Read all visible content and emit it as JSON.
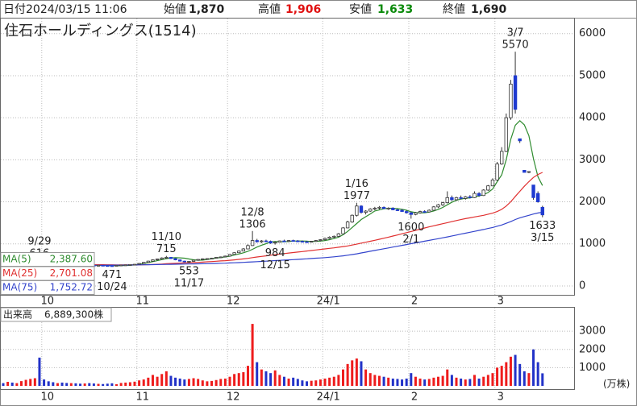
{
  "header": {
    "date_label": "日付",
    "datetime": "2024/03/15 11:06",
    "open_label": "始値",
    "open": "1,870",
    "high_label": "高値",
    "high": "1,906",
    "low_label": "安値",
    "low": "1,633",
    "close_label": "終値",
    "close": "1,690"
  },
  "chart_data": {
    "type": "candlestick",
    "title": "住石ホールディングス(1514)",
    "categories": [
      null,
      null,
      null,
      null,
      null,
      null,
      null,
      null,
      null,
      "10",
      null,
      null,
      null,
      null,
      null,
      null,
      null,
      null,
      null,
      null,
      null,
      null,
      null,
      null,
      null,
      null,
      null,
      null,
      null,
      null,
      "11",
      null,
      null,
      null,
      null,
      null,
      null,
      null,
      null,
      null,
      null,
      null,
      null,
      null,
      null,
      null,
      null,
      null,
      null,
      null,
      "12",
      null,
      null,
      null,
      null,
      null,
      null,
      null,
      null,
      null,
      null,
      null,
      null,
      null,
      null,
      null,
      null,
      null,
      null,
      null,
      null,
      "24/1",
      null,
      null,
      null,
      null,
      null,
      null,
      null,
      null,
      null,
      null,
      null,
      null,
      null,
      null,
      null,
      null,
      null,
      null,
      "2",
      null,
      null,
      null,
      null,
      null,
      null,
      null,
      null,
      null,
      null,
      null,
      null,
      null,
      null,
      null,
      null,
      null,
      null,
      "3",
      null,
      null,
      null,
      null,
      null,
      null,
      null,
      null,
      null,
      null
    ],
    "ohlc": [
      [
        520,
        530,
        505,
        510
      ],
      [
        510,
        525,
        500,
        515
      ],
      [
        515,
        520,
        495,
        500
      ],
      [
        500,
        515,
        490,
        505
      ],
      [
        505,
        520,
        500,
        515
      ],
      [
        515,
        540,
        510,
        535
      ],
      [
        535,
        560,
        525,
        550
      ],
      [
        550,
        590,
        540,
        560
      ],
      [
        560,
        616,
        545,
        555
      ],
      [
        550,
        560,
        520,
        525
      ],
      [
        525,
        535,
        505,
        510
      ],
      [
        510,
        520,
        495,
        500
      ],
      [
        500,
        512,
        490,
        505
      ],
      [
        505,
        515,
        495,
        500
      ],
      [
        500,
        510,
        492,
        498
      ],
      [
        498,
        508,
        490,
        503
      ],
      [
        503,
        512,
        495,
        500
      ],
      [
        500,
        506,
        488,
        492
      ],
      [
        492,
        500,
        485,
        496
      ],
      [
        496,
        505,
        488,
        490
      ],
      [
        490,
        498,
        482,
        487
      ],
      [
        487,
        495,
        478,
        490
      ],
      [
        490,
        494,
        480,
        483
      ],
      [
        483,
        490,
        475,
        480
      ],
      [
        480,
        486,
        471,
        478
      ],
      [
        478,
        492,
        475,
        488
      ],
      [
        488,
        500,
        484,
        496
      ],
      [
        496,
        505,
        490,
        500
      ],
      [
        500,
        512,
        495,
        508
      ],
      [
        508,
        520,
        502,
        515
      ],
      [
        515,
        540,
        510,
        535
      ],
      [
        535,
        570,
        530,
        560
      ],
      [
        560,
        600,
        555,
        590
      ],
      [
        590,
        630,
        580,
        620
      ],
      [
        620,
        650,
        605,
        640
      ],
      [
        640,
        680,
        630,
        665
      ],
      [
        665,
        715,
        650,
        680
      ],
      [
        680,
        690,
        640,
        650
      ],
      [
        650,
        660,
        610,
        620
      ],
      [
        620,
        630,
        580,
        590
      ],
      [
        590,
        600,
        560,
        575
      ],
      [
        575,
        590,
        553,
        585
      ],
      [
        585,
        620,
        580,
        610
      ],
      [
        610,
        640,
        600,
        630
      ],
      [
        630,
        655,
        620,
        645
      ],
      [
        645,
        660,
        630,
        650
      ],
      [
        650,
        670,
        640,
        660
      ],
      [
        660,
        690,
        650,
        680
      ],
      [
        680,
        700,
        665,
        690
      ],
      [
        690,
        720,
        680,
        710
      ],
      [
        710,
        760,
        700,
        750
      ],
      [
        750,
        800,
        740,
        790
      ],
      [
        790,
        840,
        780,
        830
      ],
      [
        830,
        900,
        820,
        880
      ],
      [
        880,
        990,
        870,
        960
      ],
      [
        960,
        1306,
        950,
        1080
      ],
      [
        1080,
        1120,
        1030,
        1050
      ],
      [
        1050,
        1090,
        1020,
        1070
      ],
      [
        1070,
        1100,
        1040,
        1060
      ],
      [
        1060,
        1080,
        1000,
        1020
      ],
      [
        1020,
        1060,
        984,
        1040
      ],
      [
        1040,
        1080,
        1030,
        1070
      ],
      [
        1070,
        1100,
        1050,
        1060
      ],
      [
        1060,
        1090,
        1040,
        1080
      ],
      [
        1080,
        1100,
        1060,
        1070
      ],
      [
        1070,
        1090,
        1050,
        1060
      ],
      [
        1060,
        1080,
        1040,
        1050
      ],
      [
        1050,
        1070,
        1030,
        1040
      ],
      [
        1040,
        1070,
        1030,
        1060
      ],
      [
        1060,
        1090,
        1050,
        1080
      ],
      [
        1080,
        1110,
        1060,
        1100
      ],
      [
        1100,
        1150,
        1080,
        1130
      ],
      [
        1130,
        1180,
        1110,
        1160
      ],
      [
        1160,
        1200,
        1140,
        1180
      ],
      [
        1180,
        1260,
        1170,
        1240
      ],
      [
        1240,
        1400,
        1230,
        1380
      ],
      [
        1380,
        1550,
        1370,
        1520
      ],
      [
        1520,
        1700,
        1500,
        1680
      ],
      [
        1680,
        1977,
        1650,
        1900
      ],
      [
        1900,
        1920,
        1720,
        1750
      ],
      [
        1750,
        1800,
        1700,
        1780
      ],
      [
        1780,
        1850,
        1760,
        1830
      ],
      [
        1830,
        1880,
        1800,
        1850
      ],
      [
        1850,
        1900,
        1820,
        1870
      ],
      [
        1870,
        1890,
        1830,
        1840
      ],
      [
        1840,
        1870,
        1810,
        1850
      ],
      [
        1850,
        1870,
        1800,
        1810
      ],
      [
        1810,
        1840,
        1780,
        1800
      ],
      [
        1800,
        1830,
        1760,
        1770
      ],
      [
        1770,
        1800,
        1720,
        1740
      ],
      [
        1740,
        1760,
        1600,
        1700
      ],
      [
        1700,
        1760,
        1680,
        1740
      ],
      [
        1740,
        1790,
        1720,
        1770
      ],
      [
        1770,
        1800,
        1740,
        1760
      ],
      [
        1760,
        1820,
        1750,
        1800
      ],
      [
        1800,
        1900,
        1790,
        1880
      ],
      [
        1880,
        1950,
        1850,
        1930
      ],
      [
        1930,
        2000,
        1900,
        1980
      ],
      [
        1980,
        2250,
        1960,
        2100
      ],
      [
        2100,
        2150,
        2020,
        2050
      ],
      [
        2050,
        2120,
        2030,
        2100
      ],
      [
        2100,
        2150,
        2060,
        2080
      ],
      [
        2080,
        2140,
        2050,
        2120
      ],
      [
        2120,
        2160,
        2080,
        2100
      ],
      [
        2100,
        2250,
        2090,
        2200
      ],
      [
        2200,
        2230,
        2120,
        2150
      ],
      [
        2150,
        2300,
        2140,
        2280
      ],
      [
        2280,
        2400,
        2260,
        2380
      ],
      [
        2380,
        2560,
        2370,
        2520
      ],
      [
        2520,
        2950,
        2500,
        2900
      ],
      [
        2900,
        3300,
        2880,
        3200
      ],
      [
        3200,
        4100,
        3180,
        4000
      ],
      [
        4000,
        4900,
        3950,
        4800
      ],
      [
        5000,
        5570,
        4100,
        4200
      ],
      [
        3500,
        3500,
        3400,
        3450
      ],
      [
        2750,
        2750,
        2700,
        2700
      ],
      [
        2700,
        2730,
        2680,
        2720
      ],
      [
        2400,
        2400,
        2050,
        2100
      ],
      [
        2200,
        2250,
        1980,
        2000
      ],
      [
        1870,
        1906,
        1633,
        1690
      ]
    ],
    "up_color": "#ffffff",
    "down_color": "#1f3ad0",
    "candle_stroke": "#333333",
    "ylim": [
      -250,
      6340
    ],
    "yticks": [
      0,
      1000,
      2000,
      3000,
      4000,
      5000,
      6000
    ],
    "grid": true,
    "series": [
      {
        "name": "MA(5)",
        "legend_label": "2,387.60",
        "color": "#2e8b2e",
        "values": [
          515,
          515,
          512,
          508,
          509,
          510,
          521,
          533,
          545,
          545,
          538,
          522,
          510,
          503,
          500,
          501,
          501,
          499,
          496,
          496,
          494,
          493,
          490,
          486,
          484,
          482,
          483,
          487,
          492,
          501,
          514,
          532,
          554,
          578,
          601,
          625,
          649,
          665,
          671,
          668,
          660,
          641,
          622,
          612,
          614,
          629,
          645,
          661,
          675,
          690,
          708,
          734,
          760,
          789,
          822,
          871,
          925,
          969,
          1005,
          1046,
          1056,
          1050,
          1048,
          1056,
          1066,
          1069,
          1068,
          1064,
          1058,
          1058,
          1066,
          1080,
          1100,
          1128,
          1160,
          1218,
          1296,
          1390,
          1484,
          1580,
          1646,
          1712,
          1782,
          1808,
          1834,
          1846,
          1848,
          1838,
          1822,
          1800,
          1764,
          1744,
          1737,
          1740,
          1755,
          1782,
          1820,
          1866,
          1930,
          1990,
          2036,
          2066,
          2086,
          2094,
          2118,
          2140,
          2170,
          2222,
          2306,
          2480,
          2640,
          3000,
          3484,
          3820,
          3930,
          3830,
          3574,
          3034,
          2594,
          2387.6
        ]
      },
      {
        "name": "MA(25)",
        "legend_label": "2,701.08",
        "color": "#e03030",
        "values": [
          540,
          538,
          536,
          534,
          532,
          530,
          529,
          528,
          528,
          527,
          526,
          524,
          522,
          520,
          518,
          516,
          514,
          512,
          510,
          508,
          506,
          505,
          504,
          503,
          502,
          501,
          500,
          500,
          500,
          500,
          501,
          503,
          506,
          510,
          515,
          521,
          527,
          533,
          538,
          543,
          547,
          551,
          556,
          561,
          567,
          573,
          580,
          587,
          594,
          601,
          610,
          620,
          631,
          643,
          657,
          673,
          688,
          702,
          716,
          730,
          744,
          757,
          770,
          782,
          794,
          806,
          818,
          830,
          842,
          855,
          868,
          880,
          893,
          906,
          920,
          935,
          952,
          972,
          994,
          1018,
          1040,
          1062,
          1085,
          1110,
          1135,
          1160,
          1186,
          1212,
          1240,
          1268,
          1295,
          1322,
          1350,
          1378,
          1405,
          1430,
          1455,
          1480,
          1505,
          1530,
          1555,
          1578,
          1600,
          1620,
          1640,
          1660,
          1680,
          1705,
          1730,
          1770,
          1820,
          1900,
          2000,
          2130,
          2250,
          2370,
          2480,
          2580,
          2650,
          2701.08
        ]
      },
      {
        "name": "MA(75)",
        "legend_label": "1,752.72",
        "color": "#3344cc",
        "values": [
          470,
          471,
          472,
          473,
          474,
          475,
          476,
          477,
          478,
          479,
          480,
          481,
          482,
          483,
          484,
          485,
          486,
          487,
          488,
          489,
          490,
          491,
          492,
          493,
          494,
          495,
          496,
          497,
          498,
          499,
          500,
          502,
          504,
          506,
          508,
          510,
          512,
          514,
          516,
          518,
          520,
          522,
          524,
          526,
          528,
          530,
          533,
          536,
          539,
          542,
          546,
          550,
          555,
          560,
          566,
          572,
          578,
          584,
          590,
          596,
          602,
          608,
          614,
          620,
          626,
          632,
          638,
          645,
          652,
          659,
          666,
          674,
          683,
          693,
          704,
          716,
          730,
          746,
          764,
          784,
          804,
          824,
          844,
          864,
          884,
          904,
          924,
          944,
          964,
          984,
          1004,
          1024,
          1044,
          1064,
          1084,
          1104,
          1124,
          1144,
          1166,
          1188,
          1210,
          1232,
          1254,
          1276,
          1298,
          1320,
          1342,
          1366,
          1390,
          1420,
          1450,
          1490,
          1530,
          1580,
          1620,
          1650,
          1680,
          1710,
          1735,
          1752.72
        ]
      }
    ],
    "annotations": [
      {
        "date": "9/29",
        "value": 616
      },
      {
        "date": "11/10",
        "value": 715
      },
      {
        "date": "12/8",
        "value": 1306
      },
      {
        "date": "1/16",
        "value": 1977
      },
      {
        "date": "3/7",
        "value": 5570
      },
      {
        "date": "10/24",
        "value": 471
      },
      {
        "date": "11/17",
        "value": 553
      },
      {
        "date": "12/15",
        "value": 984
      },
      {
        "date": "2/1",
        "value": 1600
      },
      {
        "date": "3/15",
        "value": 1633
      }
    ],
    "volume": {
      "label": "出来高",
      "total_label": "6,889,300株",
      "unit_label": "(万株)",
      "up_color": "#ee1c1c",
      "down_color": "#2232c8",
      "values": [
        150,
        220,
        180,
        150,
        260,
        330,
        380,
        420,
        1550,
        350,
        250,
        200,
        150,
        180,
        160,
        150,
        140,
        120,
        130,
        150,
        130,
        110,
        100,
        120,
        140,
        90,
        160,
        180,
        200,
        230,
        300,
        350,
        450,
        600,
        500,
        650,
        800,
        550,
        450,
        400,
        350,
        380,
        420,
        380,
        300,
        250,
        270,
        320,
        380,
        400,
        500,
        650,
        700,
        750,
        1100,
        3400,
        1300,
        900,
        800,
        700,
        850,
        600,
        500,
        400,
        450,
        380,
        300,
        250,
        280,
        300,
        350,
        400,
        450,
        500,
        600,
        900,
        1200,
        1400,
        1500,
        1350,
        900,
        700,
        600,
        550,
        500,
        450,
        400,
        380,
        350,
        400,
        700,
        500,
        400,
        350,
        380,
        450,
        500,
        550,
        900,
        600,
        450,
        400,
        350,
        380,
        600,
        400,
        500,
        600,
        700,
        1000,
        1100,
        1300,
        1600,
        1700,
        1200,
        800,
        700,
        2000,
        1300,
        689
      ],
      "ylim": [
        0,
        4200
      ],
      "yticks": [
        1000,
        2000,
        3000
      ]
    }
  }
}
